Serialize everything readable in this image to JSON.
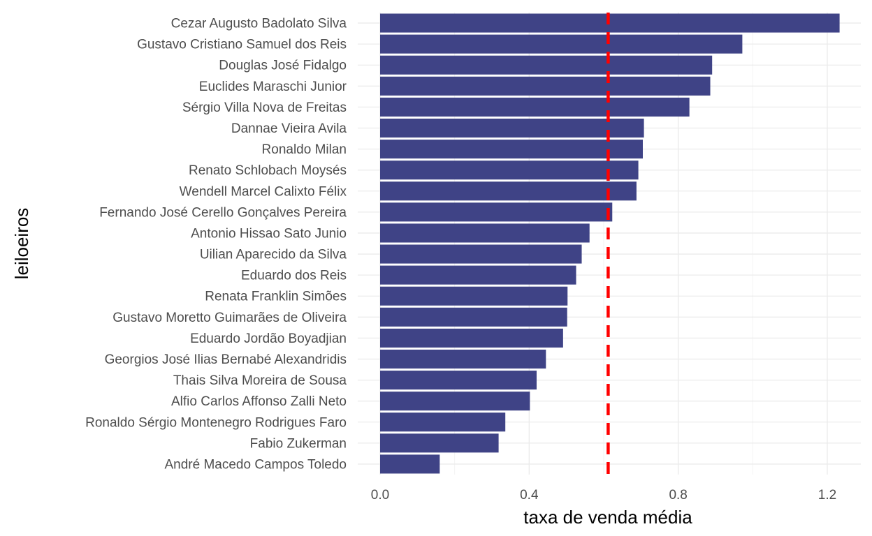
{
  "chart_data": {
    "type": "bar",
    "orientation": "horizontal",
    "xlabel": "taxa de venda média",
    "ylabel": "leiloeiros",
    "xlim": [
      -0.06,
      1.29
    ],
    "x_ticks": [
      0.0,
      0.4,
      0.8,
      1.2
    ],
    "x_tick_labels": [
      "0.0",
      "0.4",
      "0.8",
      "1.2"
    ],
    "grid": true,
    "bar_color": "#3f4386",
    "reference_line": {
      "value": 0.612,
      "color": "#ff0000",
      "style": "dashed"
    },
    "categories": [
      "Cezar Augusto Badolato Silva",
      "Gustavo Cristiano Samuel dos Reis",
      "Douglas José Fidalgo",
      "Euclides Maraschi Junior",
      "Sérgio Villa Nova de Freitas",
      "Dannae Vieira Avila",
      "Ronaldo Milan",
      "Renato Schlobach Moysés",
      "Wendell Marcel Calixto Félix",
      "Fernando José Cerello Gonçalves Pereira",
      "Antonio Hissao Sato Junio",
      "Uilian Aparecido da Silva",
      "Eduardo dos Reis",
      "Renata Franklin Simões",
      "Gustavo Moretto Guimarães de Oliveira",
      "Eduardo Jordão Boyadjian",
      "Georgios José Ilias Bernabé Alexandridis",
      "Thais Silva Moreira de Sousa",
      "Alfio Carlos Affonso Zalli Neto",
      "Ronaldo Sérgio Montenegro Rodrigues Faro",
      "Fabio Zukerman",
      "André Macedo Campos Toledo"
    ],
    "values": [
      1.233,
      0.972,
      0.891,
      0.886,
      0.83,
      0.708,
      0.705,
      0.693,
      0.688,
      0.623,
      0.562,
      0.541,
      0.526,
      0.503,
      0.502,
      0.491,
      0.445,
      0.42,
      0.402,
      0.336,
      0.318,
      0.16
    ]
  }
}
